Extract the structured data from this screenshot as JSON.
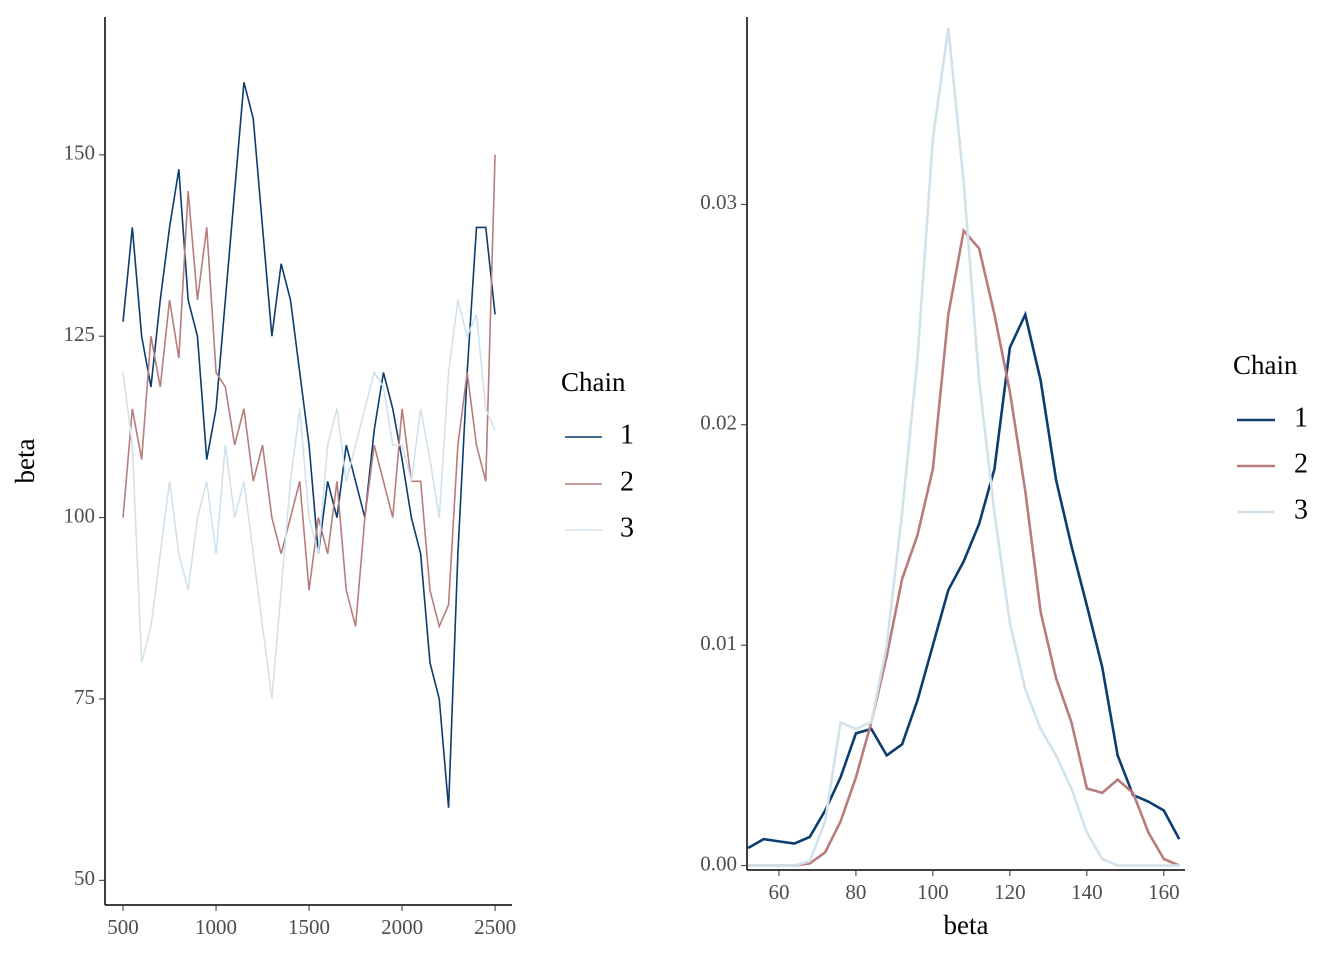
{
  "chart_data": [
    {
      "type": "line",
      "ylabel": "beta",
      "legend_title": "Chain",
      "x": [
        500,
        550,
        600,
        650,
        700,
        750,
        800,
        850,
        900,
        950,
        1000,
        1050,
        1100,
        1150,
        1200,
        1250,
        1300,
        1350,
        1400,
        1450,
        1500,
        1550,
        1600,
        1650,
        1700,
        1750,
        1800,
        1850,
        1900,
        1950,
        2000,
        2050,
        2100,
        2150,
        2200,
        2250,
        2300,
        2350,
        2400,
        2450,
        2500
      ],
      "series": [
        {
          "name": "1",
          "color": "#0b3d6e",
          "values": [
            127,
            140,
            125,
            118,
            130,
            140,
            148,
            130,
            125,
            108,
            115,
            130,
            145,
            160,
            155,
            140,
            125,
            135,
            130,
            120,
            110,
            95,
            105,
            100,
            110,
            105,
            100,
            112,
            120,
            115,
            108,
            100,
            95,
            80,
            75,
            60,
            95,
            120,
            140,
            140,
            128
          ]
        },
        {
          "name": "2",
          "color": "#b87c7c",
          "values": [
            100,
            115,
            108,
            125,
            118,
            130,
            122,
            145,
            130,
            140,
            120,
            118,
            110,
            115,
            105,
            110,
            100,
            95,
            100,
            105,
            90,
            100,
            95,
            105,
            90,
            85,
            100,
            110,
            105,
            100,
            115,
            105,
            105,
            90,
            85,
            88,
            110,
            120,
            110,
            105,
            150
          ]
        },
        {
          "name": "3",
          "color": "#d2e2ec",
          "values": [
            120,
            110,
            80,
            85,
            95,
            105,
            95,
            90,
            100,
            105,
            95,
            110,
            100,
            105,
            95,
            85,
            75,
            90,
            105,
            115,
            100,
            95,
            110,
            115,
            105,
            110,
            115,
            120,
            118,
            110,
            110,
            105,
            115,
            108,
            100,
            120,
            130,
            125,
            128,
            115,
            112
          ]
        }
      ],
      "xlim": [
        403,
        2591
      ],
      "ylim": [
        46.6,
        169
      ],
      "xticks": [
        500,
        1000,
        1500,
        2000,
        2500
      ],
      "yticks": [
        50,
        75,
        100,
        125,
        150
      ]
    },
    {
      "type": "line",
      "xlabel": "beta",
      "legend_title": "Chain",
      "x": [
        52,
        56,
        60,
        64,
        68,
        72,
        76,
        80,
        84,
        88,
        92,
        96,
        100,
        104,
        108,
        112,
        116,
        120,
        124,
        128,
        132,
        136,
        140,
        144,
        148,
        152,
        156,
        160,
        164
      ],
      "series": [
        {
          "name": "1",
          "color": "#0b3d6e",
          "values": [
            0.0008,
            0.0012,
            0.0011,
            0.001,
            0.0013,
            0.0025,
            0.004,
            0.006,
            0.0062,
            0.005,
            0.0055,
            0.0075,
            0.01,
            0.0125,
            0.0138,
            0.0155,
            0.018,
            0.0235,
            0.025,
            0.022,
            0.0175,
            0.0145,
            0.0118,
            0.009,
            0.005,
            0.0032,
            0.0029,
            0.0025,
            0.0012
          ]
        },
        {
          "name": "2",
          "color": "#b87c7c",
          "values": [
            0,
            0,
            0,
            0,
            0.0001,
            0.0006,
            0.002,
            0.004,
            0.0065,
            0.0095,
            0.013,
            0.015,
            0.018,
            0.025,
            0.0288,
            0.028,
            0.025,
            0.0215,
            0.017,
            0.0115,
            0.0085,
            0.0065,
            0.0035,
            0.0033,
            0.0039,
            0.0033,
            0.0015,
            0.0003,
            0
          ]
        },
        {
          "name": "3",
          "color": "#d2e2ec",
          "values": [
            0,
            0,
            0,
            0,
            0.0002,
            0.002,
            0.0065,
            0.0062,
            0.0065,
            0.01,
            0.016,
            0.023,
            0.033,
            0.038,
            0.031,
            0.022,
            0.016,
            0.011,
            0.008,
            0.0062,
            0.005,
            0.0035,
            0.0015,
            0.0003,
            0,
            0,
            0,
            0,
            0
          ]
        }
      ],
      "xlim": [
        51.7,
        165.5
      ],
      "ylim": [
        -0.0002,
        0.0385
      ],
      "xticks": [
        60,
        80,
        100,
        120,
        140,
        160
      ],
      "yticks": [
        {
          "value": 0,
          "label": "0.00"
        },
        0.01,
        0.02,
        0.03
      ]
    }
  ]
}
